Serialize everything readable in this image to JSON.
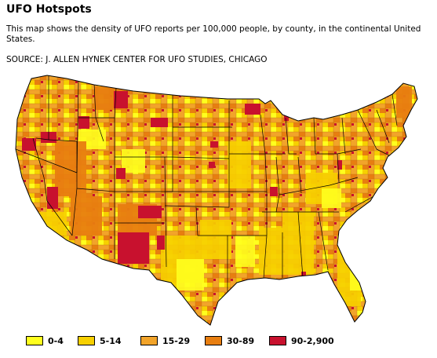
{
  "header": {
    "title": "UFO Hotspots",
    "description": "This map shows the density of UFO reports per 100,000 people, by county, in the continental United States.",
    "source": "SOURCE: J. ALLEN HYNEK CENTER FOR UFO STUDIES, CHICAGO"
  },
  "legend": {
    "items": [
      {
        "label": "0-4",
        "color": "#ffff1e"
      },
      {
        "label": "5-14",
        "color": "#f7d000"
      },
      {
        "label": "15-29",
        "color": "#f2a42a"
      },
      {
        "label": "30-89",
        "color": "#e87e10"
      },
      {
        "label": "90-2,900",
        "color": "#c8112e"
      }
    ]
  },
  "colors": {
    "border": "#000000",
    "background": "#ffffff"
  }
}
